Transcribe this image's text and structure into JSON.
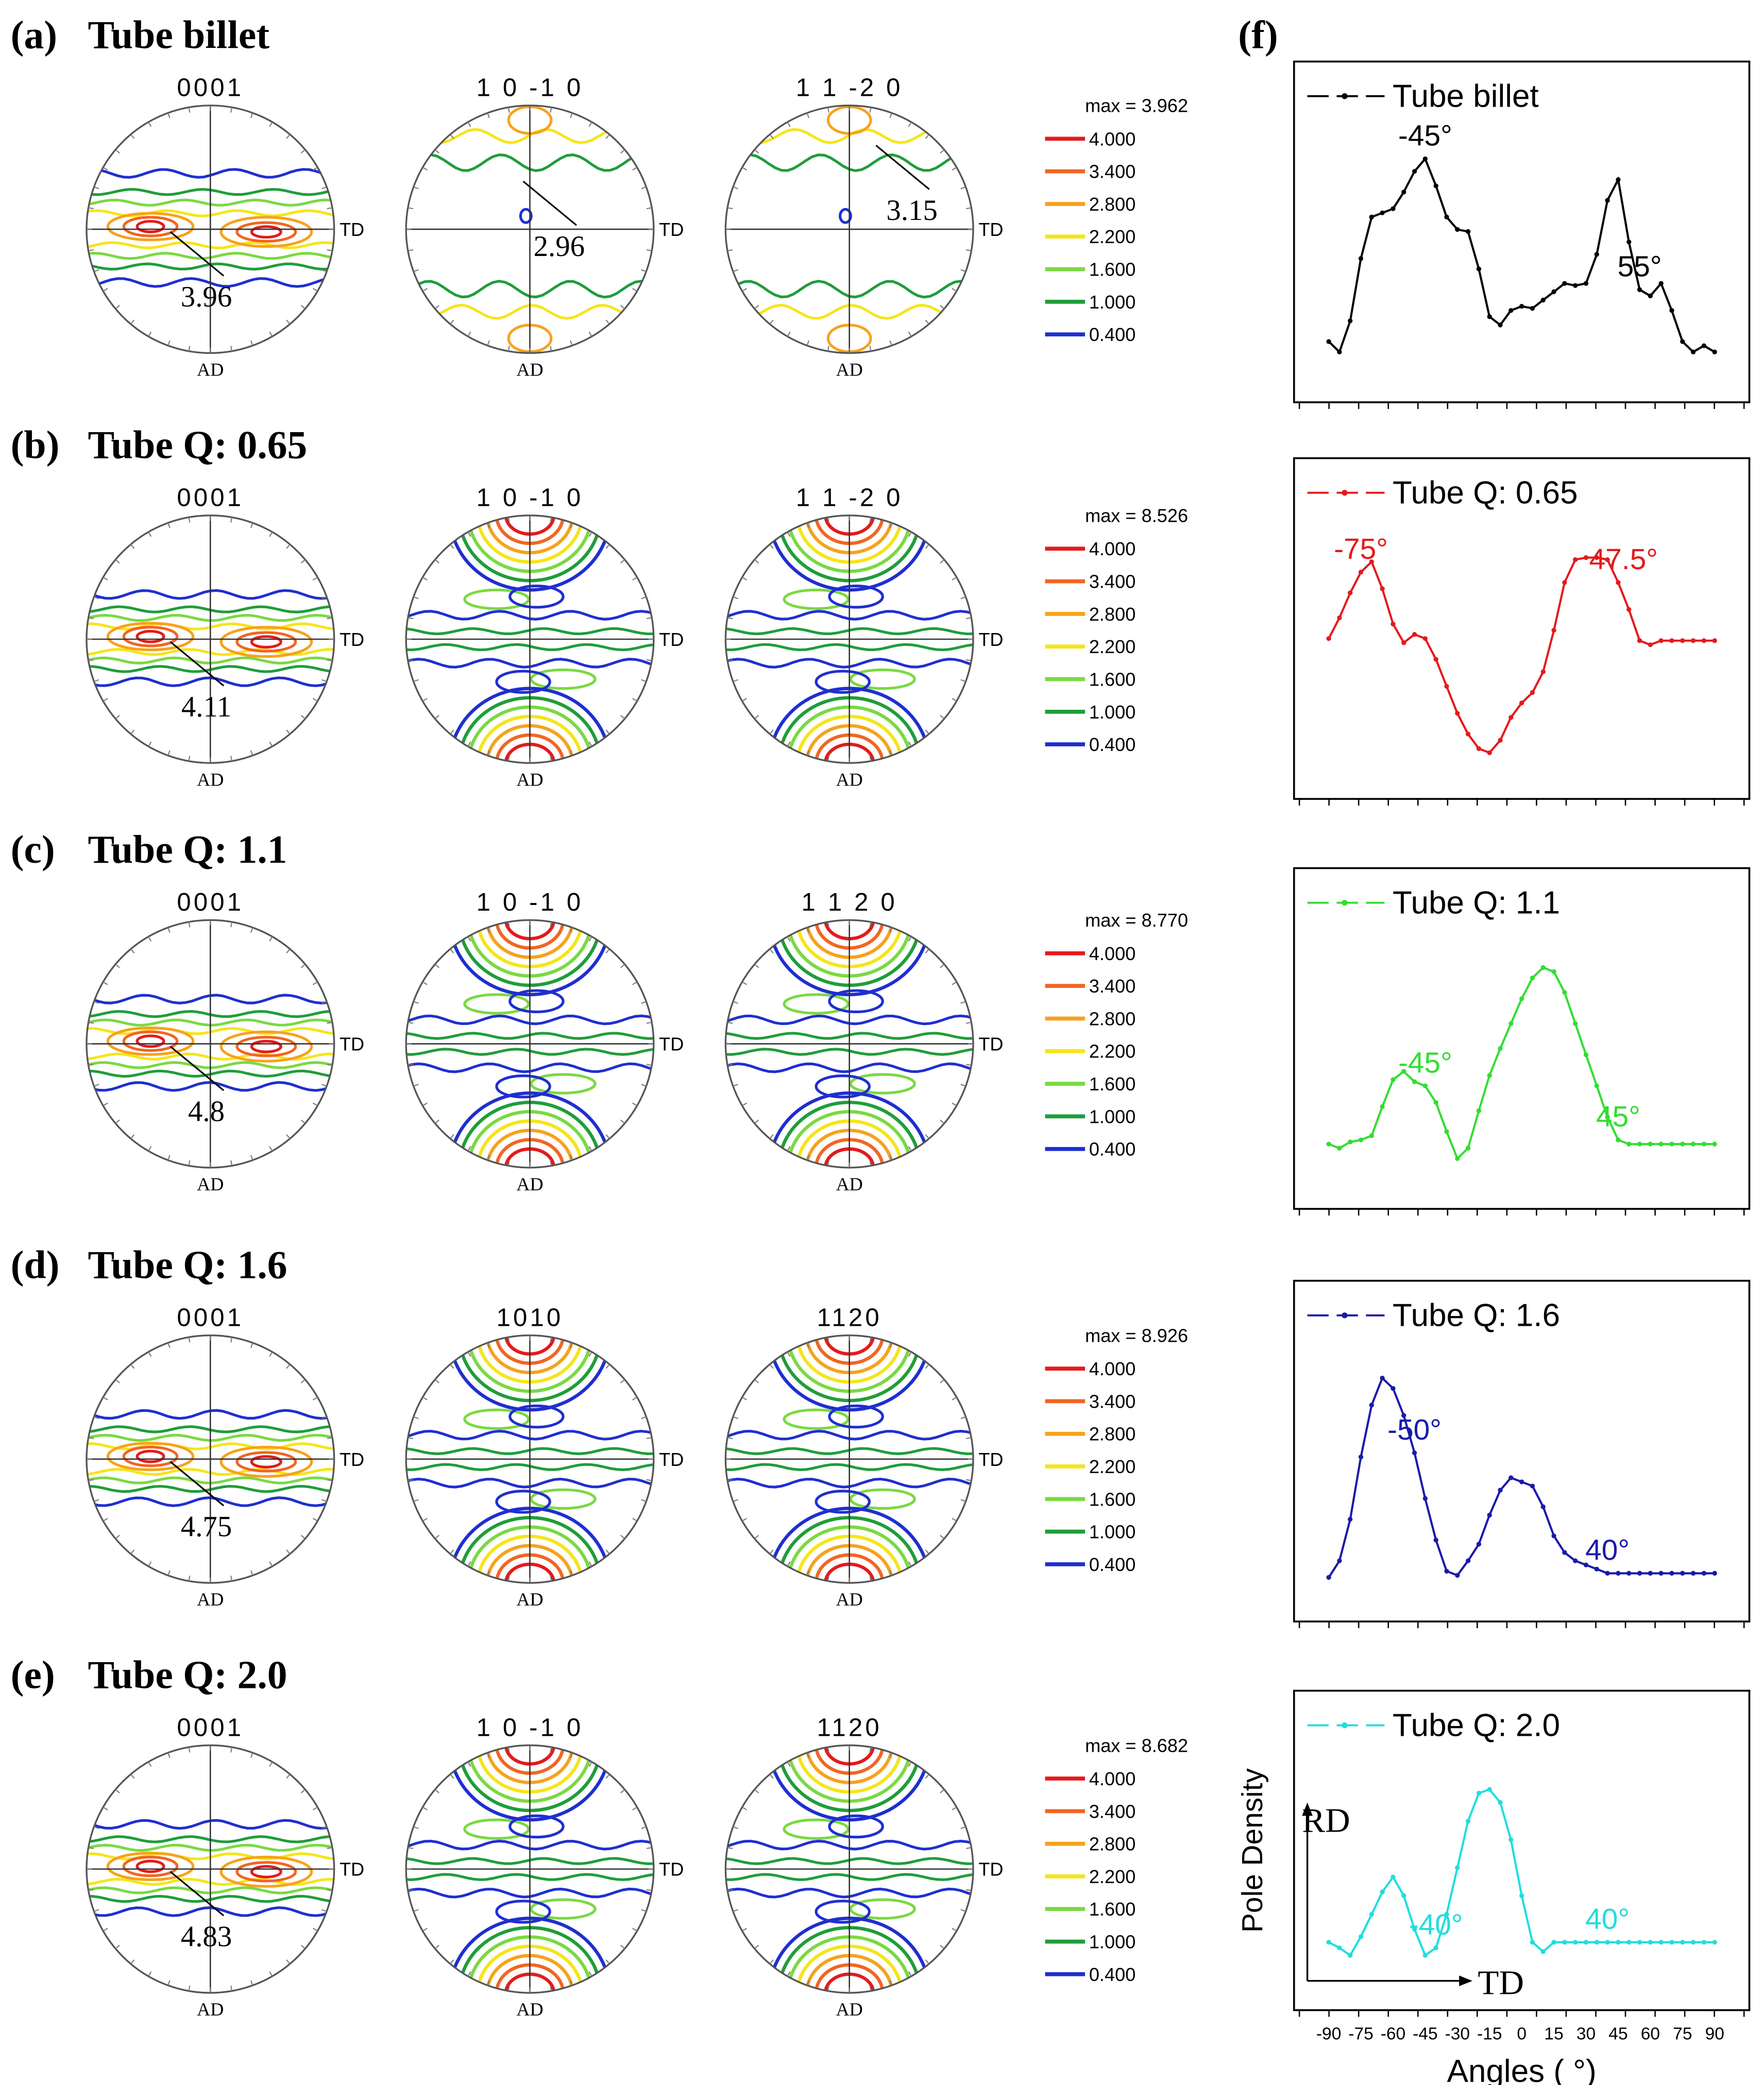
{
  "figure": {
    "panels": [
      {
        "label": "(a)",
        "title": "Tube billet",
        "legend_max": "max = 3.962",
        "pole_figures": [
          {
            "plane": "0001",
            "callout": "3.96"
          },
          {
            "plane": "1 0 -1 0",
            "callout": "2.96"
          },
          {
            "plane": "1 1 -2 0",
            "callout": "3.15"
          }
        ]
      },
      {
        "label": "(b)",
        "title": "Tube Q: 0.65",
        "legend_max": "max = 8.526",
        "pole_figures": [
          {
            "plane": "0001",
            "callout": "4.11"
          },
          {
            "plane": "1 0 -1 0",
            "callout": ""
          },
          {
            "plane": "1 1 -2 0",
            "callout": ""
          }
        ]
      },
      {
        "label": "(c)",
        "title": "Tube Q: 1.1",
        "legend_max": "max = 8.770",
        "pole_figures": [
          {
            "plane": "0001",
            "callout": "4.8"
          },
          {
            "plane": "1 0 -1 0",
            "callout": ""
          },
          {
            "plane": "1 1 2 0",
            "callout": ""
          }
        ]
      },
      {
        "label": "(d)",
        "title": "Tube Q: 1.6",
        "legend_max": "max = 8.926",
        "pole_figures": [
          {
            "plane": "0001",
            "callout": "4.75"
          },
          {
            "plane": "1010",
            "callout": ""
          },
          {
            "plane": "1120",
            "callout": ""
          }
        ]
      },
      {
        "label": "(e)",
        "title": "Tube Q: 2.0",
        "legend_max": "max = 8.682",
        "pole_figures": [
          {
            "plane": "0001",
            "callout": "4.83"
          },
          {
            "plane": "1 0 -1 0",
            "callout": ""
          },
          {
            "plane": "1120",
            "callout": ""
          }
        ]
      }
    ],
    "axis_td": "TD",
    "axis_ad": "AD",
    "contour_levels": [
      {
        "value": "4.000",
        "color": "#e41a1c"
      },
      {
        "value": "3.400",
        "color": "#f26522"
      },
      {
        "value": "2.800",
        "color": "#f7a21b"
      },
      {
        "value": "2.200",
        "color": "#f5e51a"
      },
      {
        "value": "1.600",
        "color": "#7ad942"
      },
      {
        "value": "1.000",
        "color": "#1f9d3a"
      },
      {
        "value": "0.400",
        "color": "#1f2fd0"
      }
    ],
    "f_panel_label": "(f)",
    "rd_label": "RD",
    "td_label": "TD"
  },
  "chart_data": {
    "type": "line",
    "xlabel": "Angles ( °)",
    "ylabel": "Pole Density",
    "xlim": [
      -95,
      95
    ],
    "x_ticks": [
      -90,
      -75,
      -60,
      -45,
      -30,
      -15,
      0,
      15,
      30,
      45,
      60,
      75,
      90
    ],
    "x": [
      -90,
      -85,
      -80,
      -75,
      -70,
      -65,
      -60,
      -55,
      -50,
      -45,
      -40,
      -35,
      -30,
      -25,
      -20,
      -15,
      -10,
      -5,
      0,
      5,
      10,
      15,
      20,
      25,
      30,
      35,
      40,
      45,
      50,
      55,
      60,
      65,
      70,
      75,
      80,
      85,
      90
    ],
    "series": [
      {
        "name": "Tube billet",
        "color": "#000000",
        "values": [
          0.1,
          0.05,
          0.2,
          0.5,
          0.7,
          0.72,
          0.74,
          0.82,
          0.92,
          0.98,
          0.85,
          0.7,
          0.64,
          0.63,
          0.45,
          0.22,
          0.18,
          0.25,
          0.27,
          0.26,
          0.3,
          0.34,
          0.38,
          0.37,
          0.38,
          0.52,
          0.78,
          0.88,
          0.58,
          0.35,
          0.32,
          0.38,
          0.25,
          0.1,
          0.05,
          0.08,
          0.05
        ],
        "annotations": [
          {
            "text": "-45°",
            "x": -45
          },
          {
            "text": "55°",
            "x": 55
          }
        ]
      },
      {
        "name": "Tube Q: 0.65",
        "color": "#e41a1c",
        "values": [
          0.58,
          0.68,
          0.8,
          0.9,
          0.95,
          0.82,
          0.65,
          0.56,
          0.6,
          0.58,
          0.48,
          0.35,
          0.22,
          0.12,
          0.05,
          0.03,
          0.09,
          0.2,
          0.27,
          0.32,
          0.42,
          0.62,
          0.85,
          0.96,
          0.97,
          0.97,
          0.96,
          0.85,
          0.72,
          0.57,
          0.55,
          0.57,
          0.57,
          0.57,
          0.57,
          0.57,
          0.57
        ],
        "annotations": [
          {
            "text": "-75°",
            "x": -75
          },
          {
            "text": "47.5°",
            "x": 47.5
          }
        ]
      },
      {
        "name": "Tube Q: 1.1",
        "color": "#33dd33",
        "values": [
          0.12,
          0.1,
          0.13,
          0.14,
          0.16,
          0.3,
          0.43,
          0.47,
          0.42,
          0.4,
          0.32,
          0.18,
          0.05,
          0.1,
          0.28,
          0.45,
          0.58,
          0.7,
          0.82,
          0.92,
          0.97,
          0.95,
          0.85,
          0.7,
          0.55,
          0.4,
          0.25,
          0.14,
          0.12,
          0.12,
          0.12,
          0.12,
          0.12,
          0.12,
          0.12,
          0.12,
          0.12
        ],
        "annotations": [
          {
            "text": "-45°",
            "x": -45
          },
          {
            "text": "45°",
            "x": 45
          }
        ]
      },
      {
        "name": "Tube Q: 1.6",
        "color": "#1a1aaa",
        "values": [
          0.02,
          0.1,
          0.3,
          0.6,
          0.85,
          0.98,
          0.93,
          0.8,
          0.62,
          0.4,
          0.2,
          0.05,
          0.03,
          0.1,
          0.18,
          0.32,
          0.44,
          0.5,
          0.48,
          0.46,
          0.36,
          0.22,
          0.14,
          0.1,
          0.08,
          0.06,
          0.04,
          0.04,
          0.04,
          0.04,
          0.04,
          0.04,
          0.04,
          0.04,
          0.04,
          0.04,
          0.04
        ],
        "annotations": [
          {
            "text": "-50°",
            "x": -50
          },
          {
            "text": "40°",
            "x": 40
          }
        ]
      },
      {
        "name": "Tube Q: 2.0",
        "color": "#22dddd",
        "values": [
          0.15,
          0.12,
          0.08,
          0.18,
          0.3,
          0.42,
          0.5,
          0.4,
          0.22,
          0.08,
          0.12,
          0.3,
          0.55,
          0.8,
          0.95,
          0.97,
          0.9,
          0.7,
          0.4,
          0.15,
          0.1,
          0.15,
          0.15,
          0.15,
          0.15,
          0.15,
          0.15,
          0.15,
          0.15,
          0.15,
          0.15,
          0.15,
          0.15,
          0.15,
          0.15,
          0.15,
          0.15
        ],
        "annotations": [
          {
            "text": "-40°",
            "x": -40
          },
          {
            "text": "40°",
            "x": 40
          }
        ]
      }
    ]
  }
}
